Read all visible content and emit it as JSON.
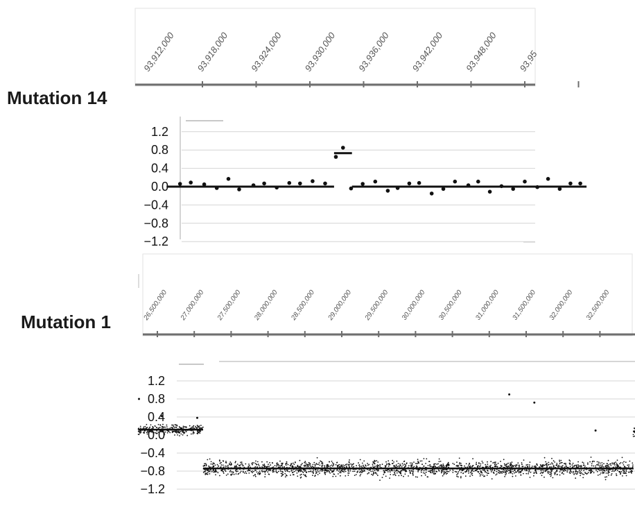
{
  "colors": {
    "points": "#111111",
    "grid": "#d4d4d4",
    "axis": "#6e6e6e",
    "coord_text": "#555555",
    "panel_border": "#e2e2e2"
  },
  "chart_data": [
    {
      "type": "scatter",
      "label": "Mutation 14",
      "coordinates": [
        "93,912,000",
        "93,918,000",
        "93,924,000",
        "93,930,000",
        "93,936,000",
        "93,942,000",
        "93,948,000",
        "93,95"
      ],
      "x": [
        93909500,
        93910700,
        93912200,
        93913600,
        93914900,
        93916100,
        93917700,
        93918900,
        93920300,
        93921700,
        93922900,
        93924300,
        93925700,
        93926900,
        93927700,
        93928600,
        93929900,
        93931300,
        93932700,
        93933800,
        93935100,
        93936200,
        93937600,
        93938900,
        93940200,
        93941700,
        93942800,
        93944100,
        93945400,
        93946700,
        93948000,
        93949400,
        93950600,
        93951900,
        93953100,
        93954200
      ],
      "y": [
        0.06,
        0.09,
        0.05,
        -0.03,
        0.17,
        -0.06,
        0.03,
        0.07,
        -0.02,
        0.08,
        0.07,
        0.12,
        0.07,
        0.65,
        0.85,
        -0.04,
        0.06,
        0.11,
        -0.09,
        -0.03,
        0.07,
        0.08,
        -0.15,
        -0.05,
        0.11,
        0.03,
        0.11,
        -0.11,
        0.01,
        -0.05,
        0.11,
        -0.01,
        0.17,
        -0.05,
        0.07,
        0.07
      ],
      "segments": [
        {
          "x_start": 93908000,
          "x_end": 93926700,
          "y": 0.0
        },
        {
          "x_start": 93926700,
          "x_end": 93928700,
          "y": 0.73
        },
        {
          "x_start": 93928700,
          "x_end": 93954900,
          "y": 0.0
        }
      ],
      "yticks": [
        "1.2",
        "0.8",
        "0.4",
        "0.0",
        "−0.4",
        "−0.8",
        "−1.2"
      ],
      "ylim": [
        -1.2,
        1.2
      ],
      "grid": true
    },
    {
      "type": "scatter",
      "label": "Mutation 1",
      "coordinates": [
        "26,500,000",
        "27,000,000",
        "27,500,000",
        "28,000,000",
        "28,500,000",
        "29,000,000",
        "29,500,000",
        "30,000,000",
        "30,500,000",
        "31,000,000",
        "31,500,000",
        "32,000,000",
        "32,500,000"
      ],
      "segments": [
        {
          "x_start": 26250000,
          "x_end": 27130000,
          "y": 0.12,
          "spread": 0.14
        },
        {
          "x_start": 27130000,
          "x_end": 32960000,
          "y": -0.74,
          "spread": 0.22
        },
        {
          "x_start": 32960000,
          "x_end": 33300000,
          "y": 0.08,
          "spread": 0.14
        }
      ],
      "outliers": [
        {
          "x": 26260000,
          "y": 0.8
        },
        {
          "x": 26570000,
          "y": 0.42
        },
        {
          "x": 27050000,
          "y": 0.38
        },
        {
          "x": 31280000,
          "y": 0.9
        },
        {
          "x": 31620000,
          "y": 0.72
        },
        {
          "x": 32450000,
          "y": 0.1
        }
      ],
      "yticks": [
        "1.2",
        "0.8",
        "0.4",
        "0.0",
        "−0.4",
        "−0.8",
        "−1.2"
      ],
      "ylim": [
        -1.2,
        1.2
      ],
      "grid": true
    }
  ]
}
